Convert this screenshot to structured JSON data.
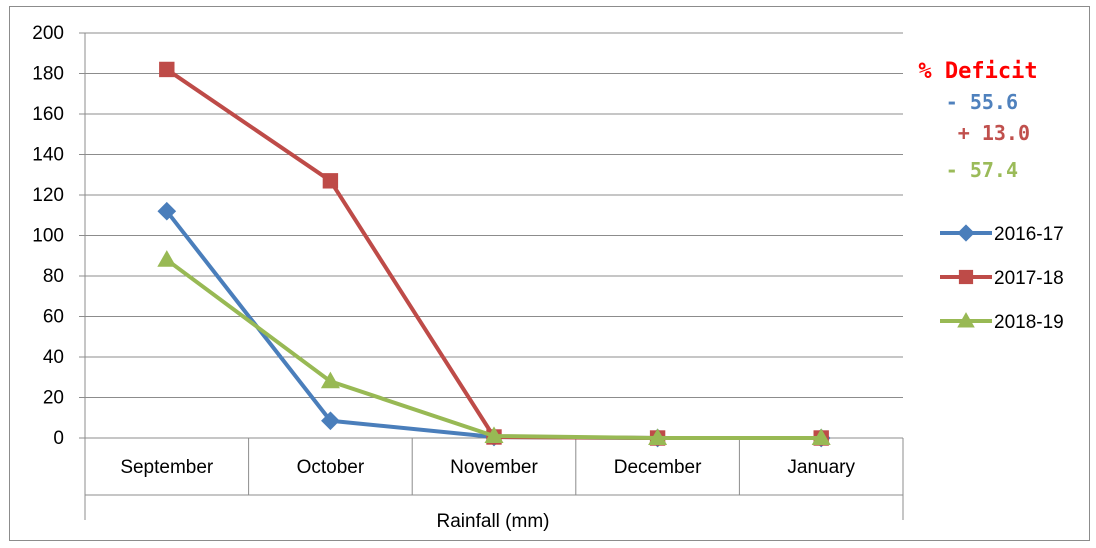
{
  "chart_data": {
    "type": "line",
    "categories": [
      "September",
      "October",
      "November",
      "December",
      "January"
    ],
    "series": [
      {
        "name": "2016-17",
        "values": [
          112,
          8.5,
          0.5,
          0,
          0
        ],
        "color": "#4a7ebb",
        "marker": "diamond"
      },
      {
        "name": "2017-18",
        "values": [
          182,
          127,
          0.5,
          0,
          0
        ],
        "color": "#be4b48",
        "marker": "square"
      },
      {
        "name": "2018-19",
        "values": [
          88,
          28,
          1,
          0,
          0
        ],
        "color": "#98b954",
        "marker": "triangle"
      }
    ],
    "ylim": [
      0,
      200
    ],
    "yticks": [
      0,
      20,
      40,
      60,
      80,
      100,
      120,
      140,
      160,
      180,
      200
    ],
    "xlabel": "Rainfall (mm)",
    "ylabel": "",
    "grid": true,
    "legend_position": "right",
    "annotations": {
      "title": {
        "text": "% Deficit",
        "color": "#ff0000"
      },
      "values": [
        {
          "text": "- 55.6",
          "color": "#4f81bd"
        },
        {
          "text": "+ 13.0",
          "color": "#c0504d"
        },
        {
          "text": "- 57.4",
          "color": "#9bbb59"
        }
      ]
    }
  }
}
